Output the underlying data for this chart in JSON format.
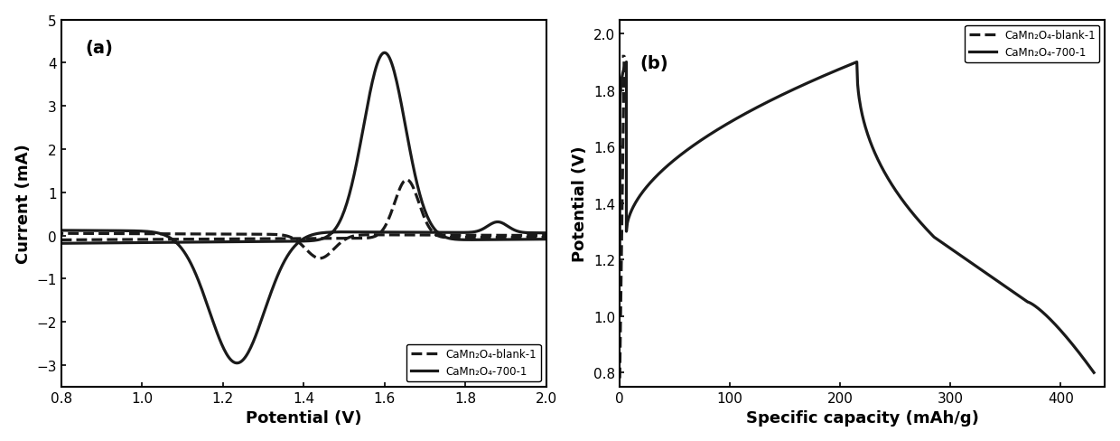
{
  "panel_a": {
    "label": "(a)",
    "xlabel": "Potential (V)",
    "ylabel": "Current (mA)",
    "xlim": [
      0.8,
      2.0
    ],
    "ylim": [
      -3.5,
      5.0
    ],
    "yticks": [
      -3,
      -2,
      -1,
      0,
      1,
      2,
      3,
      4,
      5
    ],
    "xticks": [
      0.8,
      1.0,
      1.2,
      1.4,
      1.6,
      1.8,
      2.0
    ],
    "legend": [
      "CaMn₂O₄-blank-1",
      "CaMn₂O₄-700-1"
    ],
    "line_colors": [
      "#1a1a1a",
      "#1a1a1a"
    ],
    "line_styles": [
      "dashed",
      "solid"
    ]
  },
  "panel_b": {
    "label": "(b)",
    "xlabel": "Specific capacity (mAh/g)",
    "ylabel": "Potential (V)",
    "xlim": [
      0,
      440
    ],
    "ylim": [
      0.75,
      2.05
    ],
    "yticks": [
      0.8,
      1.0,
      1.2,
      1.4,
      1.6,
      1.8,
      2.0
    ],
    "xticks": [
      0,
      100,
      200,
      300,
      400
    ],
    "legend": [
      "CaMn₂O₄-blank-1",
      "CaMn₂O₄-700-1"
    ],
    "line_colors": [
      "#1a1a1a",
      "#1a1a1a"
    ],
    "line_styles": [
      "dashed",
      "solid"
    ]
  },
  "figure_bg": "#ffffff",
  "axes_bg": "#ffffff",
  "font_color": "#000000",
  "linewidth": 2.0,
  "font_size": 11,
  "label_font_size": 13
}
